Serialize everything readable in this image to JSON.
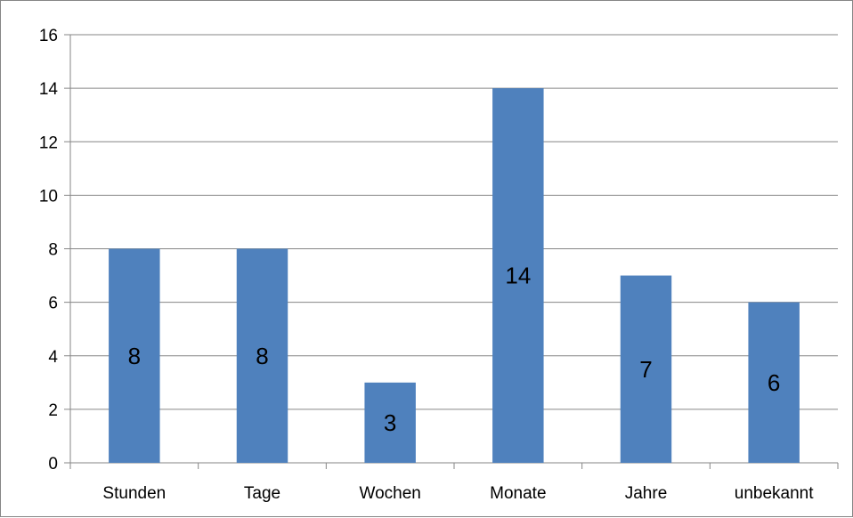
{
  "chart_data": {
    "type": "bar",
    "categories": [
      "Stunden",
      "Tage",
      "Wochen",
      "Monate",
      "Jahre",
      "unbekannt"
    ],
    "values": [
      8,
      8,
      3,
      14,
      7,
      6
    ],
    "data_labels": [
      "8",
      "8",
      "3",
      "14",
      "7",
      "6"
    ],
    "title": "",
    "xlabel": "",
    "ylabel": "",
    "ylim": [
      0,
      16
    ],
    "yticks": [
      0,
      2,
      4,
      6,
      8,
      10,
      12,
      14,
      16
    ],
    "ytick_labels": [
      "0",
      "2",
      "4",
      "6",
      "8",
      "10",
      "12",
      "14",
      "16"
    ],
    "grid": true,
    "legend": "none",
    "bar_color": "#4F81BD",
    "grid_color": "#868686"
  }
}
